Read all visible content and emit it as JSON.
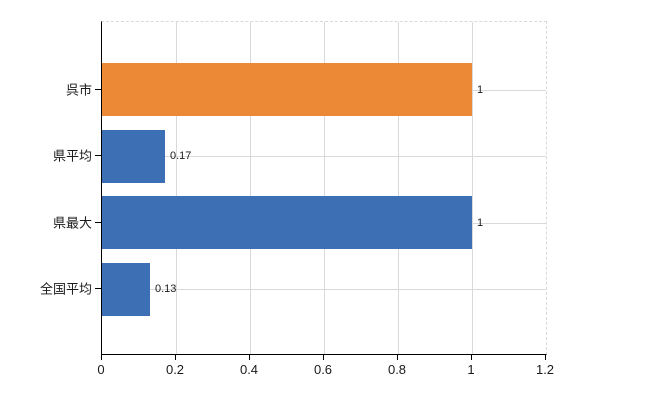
{
  "chart_data": {
    "type": "bar",
    "orientation": "horizontal",
    "title": "",
    "xlabel": "",
    "ylabel": "",
    "categories": [
      "呉市",
      "県平均",
      "県最大",
      "全国平均"
    ],
    "values": [
      1,
      0.17,
      1,
      0.13
    ],
    "value_labels": [
      "1",
      "0.17",
      "1",
      "0.13"
    ],
    "bar_colors": [
      "#EC8936",
      "#3D6FB4",
      "#3D6FB4",
      "#3D6FB4"
    ],
    "x_tick_values": [
      0,
      0.2,
      0.4,
      0.6,
      0.8,
      1,
      1.2
    ],
    "x_tick_labels": [
      "0",
      "0.2",
      "0.4",
      "0.6",
      "0.8",
      "1",
      "1.2"
    ],
    "xlim": [
      0,
      1.2
    ],
    "grid": true,
    "legend": "none"
  },
  "colors": {
    "bar_orange": "#EC8936",
    "bar_blue": "#3D6FB4",
    "gridline": "#D9D9D9",
    "plot_border_dashed": "#D9D9D9",
    "axis_line": "#000000",
    "text": "#1A1A1A",
    "background": "#FFFFFF"
  }
}
